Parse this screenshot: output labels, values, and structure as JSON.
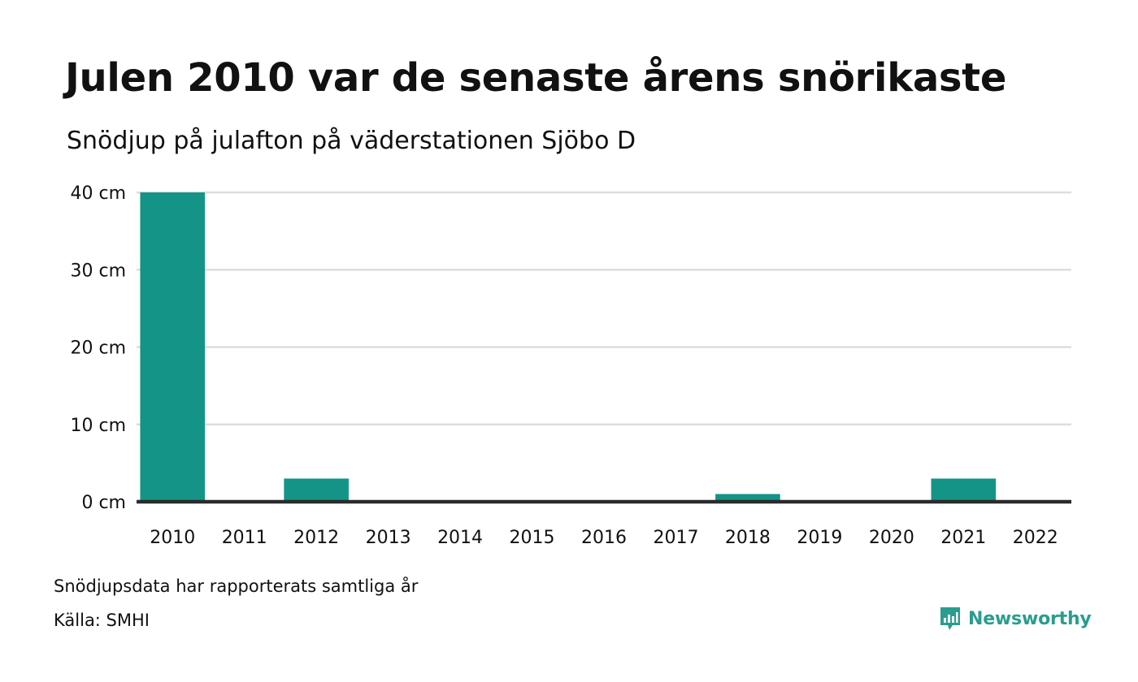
{
  "header": {
    "title": "Julen 2010 var de senaste årens snörikaste",
    "subtitle": "Snödjup på julafton på väderstationen Sjöbo D"
  },
  "footer": {
    "note": "Snödjupsdata har rapporterats samtliga år",
    "source": "Källa: SMHI",
    "brand": "Newsworthy",
    "brand_icon": "newsworthy-logo-icon"
  },
  "colors": {
    "bar": "#149487",
    "grid": "#dddddd",
    "baseline": "#2b2b2b",
    "brand": "#2a9d8f"
  },
  "chart_data": {
    "type": "bar",
    "categories": [
      "2010",
      "2011",
      "2012",
      "2013",
      "2014",
      "2015",
      "2016",
      "2017",
      "2018",
      "2019",
      "2020",
      "2021",
      "2022"
    ],
    "values": [
      40,
      0,
      3,
      0,
      0,
      0,
      0,
      0,
      1,
      0,
      0,
      3,
      0
    ],
    "ylim": [
      0,
      40
    ],
    "yticks": [
      0,
      10,
      20,
      30,
      40
    ],
    "ytick_labels": [
      "0 cm",
      "10 cm",
      "20 cm",
      "30 cm",
      "40 cm"
    ],
    "grid": true,
    "legend": "none"
  }
}
